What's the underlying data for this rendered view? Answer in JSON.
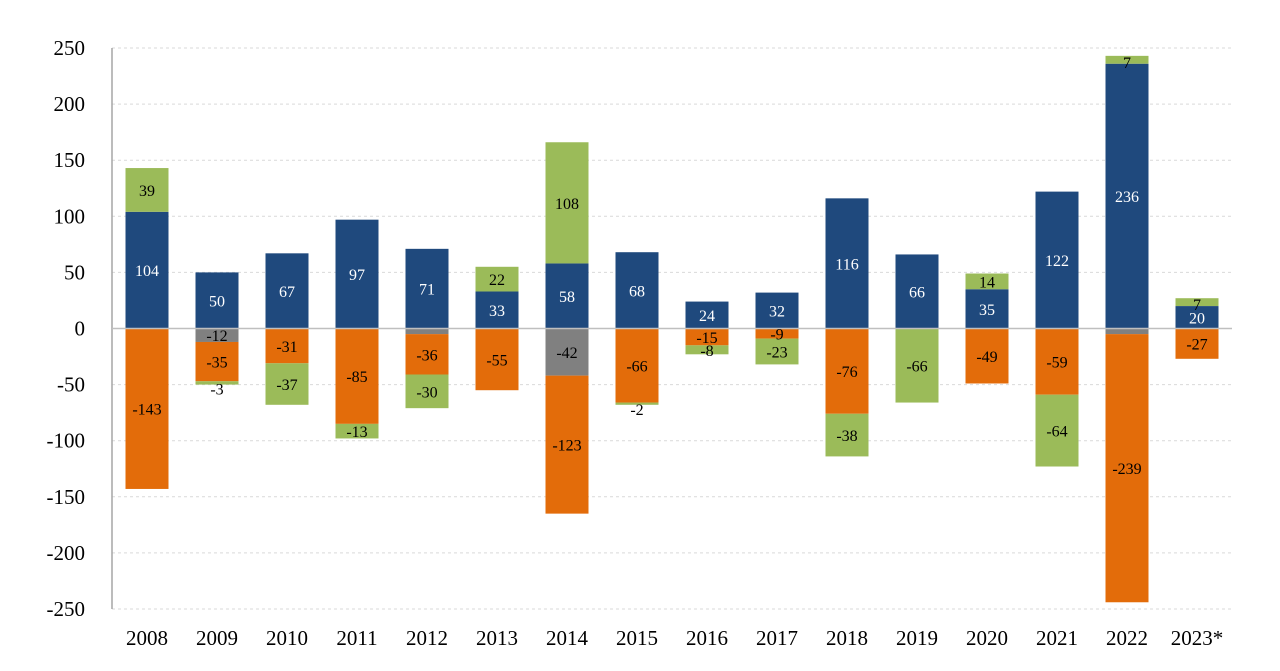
{
  "chart_data": {
    "type": "bar",
    "stacked": true,
    "title": "",
    "xlabel": "",
    "ylabel": "",
    "ylim": [
      -250,
      250
    ],
    "yticks": [
      -250,
      -200,
      -150,
      -100,
      -50,
      0,
      50,
      100,
      150,
      200,
      250
    ],
    "grid": true,
    "categories": [
      "2008",
      "2009",
      "2010",
      "2011",
      "2012",
      "2013",
      "2014",
      "2015",
      "2016",
      "2017",
      "2018",
      "2019",
      "2020",
      "2021",
      "2022",
      "2023*"
    ],
    "series": [
      {
        "color": "#1f497d",
        "label_color": "#ffffff",
        "values": [
          104,
          50,
          67,
          97,
          71,
          33,
          58,
          68,
          24,
          32,
          116,
          66,
          35,
          122,
          236,
          20
        ],
        "labels": [
          "104",
          "50",
          "67",
          "97",
          "71",
          "33",
          "58",
          "68",
          "24",
          "32",
          "116",
          "66",
          "35",
          "122",
          "236",
          "20"
        ]
      },
      {
        "color": "#808080",
        "label_color": "#000000",
        "values": [
          0,
          -12,
          0,
          0,
          -5,
          0,
          -42,
          0,
          0,
          0,
          0,
          0,
          0,
          0,
          -5,
          0
        ],
        "labels": [
          null,
          "-12",
          null,
          null,
          null,
          null,
          "-42",
          null,
          null,
          null,
          null,
          null,
          null,
          null,
          null,
          null
        ]
      },
      {
        "color": "#e36c0a",
        "label_color": "#000000",
        "values": [
          -143,
          -35,
          -31,
          -85,
          -36,
          -55,
          -123,
          -66,
          -15,
          -9,
          -76,
          0,
          -49,
          -59,
          -239,
          -27
        ],
        "labels": [
          "-143",
          "-35",
          "-31",
          "-85",
          "-36",
          "-55",
          "-123",
          "-66",
          "-15",
          "-9",
          "-76",
          null,
          "-49",
          "-59",
          "-239",
          "-27"
        ]
      },
      {
        "color": "#9bbb59",
        "label_color": "#000000",
        "values": [
          39,
          -3,
          -37,
          -13,
          -30,
          22,
          108,
          -2,
          -8,
          -23,
          -38,
          -66,
          14,
          -64,
          7,
          7
        ],
        "labels": [
          "39",
          "-3",
          "-37",
          "-13",
          "-30",
          "22",
          "108",
          "-2",
          "-8",
          "-23",
          "-38",
          "-66",
          "14",
          "-64",
          "7",
          "7"
        ]
      }
    ]
  }
}
